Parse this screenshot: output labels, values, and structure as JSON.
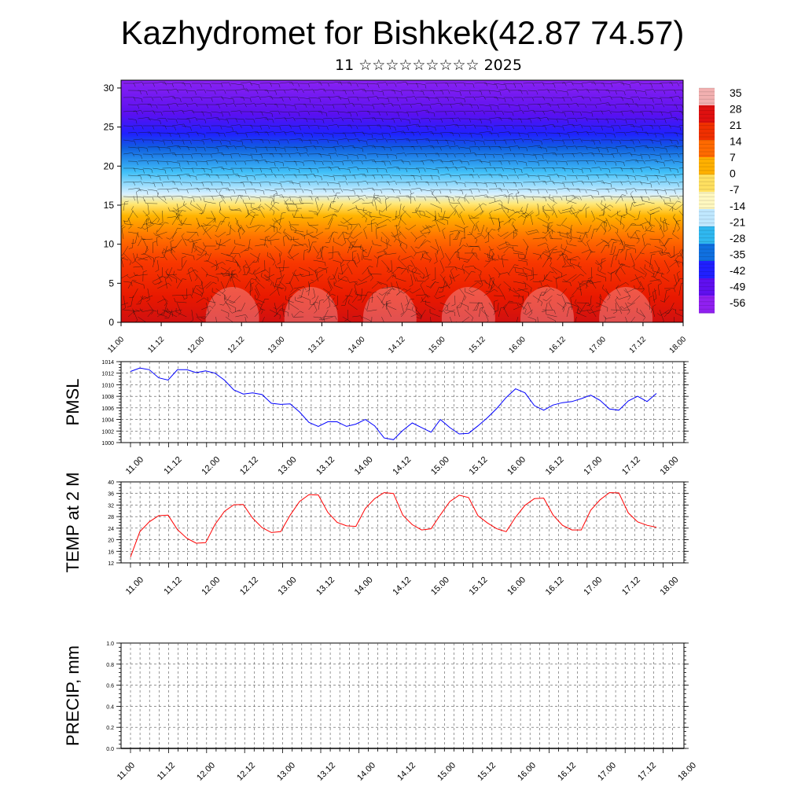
{
  "title": "Kazhydromet for Bishkek(42.87 74.57)",
  "subtitle": "11 ☆☆☆☆☆☆☆☆☆ 2025",
  "colorbar": {
    "labels": [
      "35",
      "28",
      "21",
      "14",
      "7",
      "0",
      "-7",
      "-14",
      "-21",
      "-28",
      "-35",
      "-42",
      "-49",
      "-56"
    ],
    "colors": [
      "#f2b0b0",
      "#e01010",
      "#f03000",
      "#ff6a00",
      "#ffb000",
      "#ffe060",
      "#fff8c0",
      "#c0e8ff",
      "#30b8f0",
      "#1070e0",
      "#2020ff",
      "#6010f0",
      "#9020f0"
    ]
  },
  "x_tick_labels": [
    "11.00",
    "11.12",
    "12.00",
    "12.12",
    "13.00",
    "13.12",
    "14.00",
    "14.12",
    "15.00",
    "15.12",
    "16.00",
    "16.12",
    "17.00",
    "17.12",
    "18.00"
  ],
  "chart_data": [
    {
      "type": "heatmap",
      "title": "",
      "xlabel": "",
      "ylabel": "",
      "y_ticks": [
        "0",
        "5",
        "10",
        "15",
        "20",
        "25",
        "30"
      ],
      "ylim": [
        0,
        31
      ],
      "description_layers": "temperature field with wind barbs",
      "value_range": [
        -56,
        35
      ]
    },
    {
      "type": "line",
      "ylabel": "PMSL",
      "ylim": [
        1000,
        1014
      ],
      "y_ticks": [
        "1000",
        "1002",
        "1004",
        "1006",
        "1008",
        "1010",
        "1012",
        "1014"
      ],
      "series": [
        {
          "color": "#0000ff",
          "values": [
            1012.3,
            1012.9,
            1012.6,
            1011.2,
            1010.8,
            1012.6,
            1012.6,
            1012.1,
            1012.4,
            1012.0,
            1010.8,
            1009.1,
            1008.4,
            1008.6,
            1008.3,
            1006.8,
            1006.6,
            1006.7,
            1005.3,
            1003.5,
            1002.8,
            1003.6,
            1003.6,
            1002.8,
            1003.2,
            1004.0,
            1002.9,
            1000.8,
            1000.5,
            1002.1,
            1003.4,
            1002.6,
            1001.8,
            1004.0,
            1002.6,
            1001.5,
            1001.6,
            1002.9,
            1004.3,
            1005.9,
            1007.8,
            1009.3,
            1008.6,
            1006.4,
            1005.6,
            1006.5,
            1006.9,
            1007.1,
            1007.6,
            1008.2,
            1007.3,
            1005.8,
            1005.6,
            1007.2,
            1008.0,
            1007.1,
            1008.5
          ]
        }
      ]
    },
    {
      "type": "line",
      "ylabel": "TEMP at 2 M",
      "ylim": [
        12,
        40
      ],
      "y_ticks": [
        "12",
        "16",
        "20",
        "24",
        "28",
        "32",
        "36",
        "40"
      ],
      "series": [
        {
          "color": "#ff0000",
          "values": [
            14.0,
            22.8,
            26.2,
            28.3,
            28.5,
            23.5,
            20.5,
            18.8,
            19.0,
            25.3,
            29.8,
            32.1,
            32.2,
            27.5,
            24.2,
            22.5,
            22.8,
            28.5,
            33.2,
            35.6,
            35.5,
            29.5,
            26.0,
            24.8,
            24.6,
            30.8,
            34.2,
            36.3,
            36.0,
            28.5,
            25.2,
            23.4,
            23.8,
            28.6,
            33.2,
            35.4,
            34.6,
            28.3,
            25.8,
            23.8,
            22.8,
            27.8,
            31.9,
            34.2,
            34.4,
            28.5,
            25.0,
            23.4,
            23.4,
            30.2,
            33.8,
            36.3,
            36.2,
            29.3,
            26.2,
            25.0,
            24.3
          ]
        }
      ]
    },
    {
      "type": "line",
      "ylabel": "PRECIP, mm",
      "ylim": [
        0,
        1
      ],
      "y_ticks": [
        "0.0",
        "0.2",
        "0.4",
        "0.6",
        "0.8",
        "1.0"
      ],
      "series": [
        {
          "color": "#000000",
          "values": [
            0,
            0,
            0,
            0,
            0,
            0,
            0,
            0,
            0,
            0,
            0,
            0,
            0,
            0,
            0,
            0,
            0,
            0,
            0,
            0,
            0,
            0,
            0,
            0,
            0,
            0,
            0,
            0,
            0,
            0,
            0,
            0,
            0,
            0,
            0,
            0,
            0,
            0,
            0,
            0,
            0,
            0,
            0,
            0,
            0,
            0,
            0,
            0,
            0,
            0,
            0,
            0,
            0,
            0,
            0,
            0,
            0
          ]
        }
      ]
    }
  ]
}
